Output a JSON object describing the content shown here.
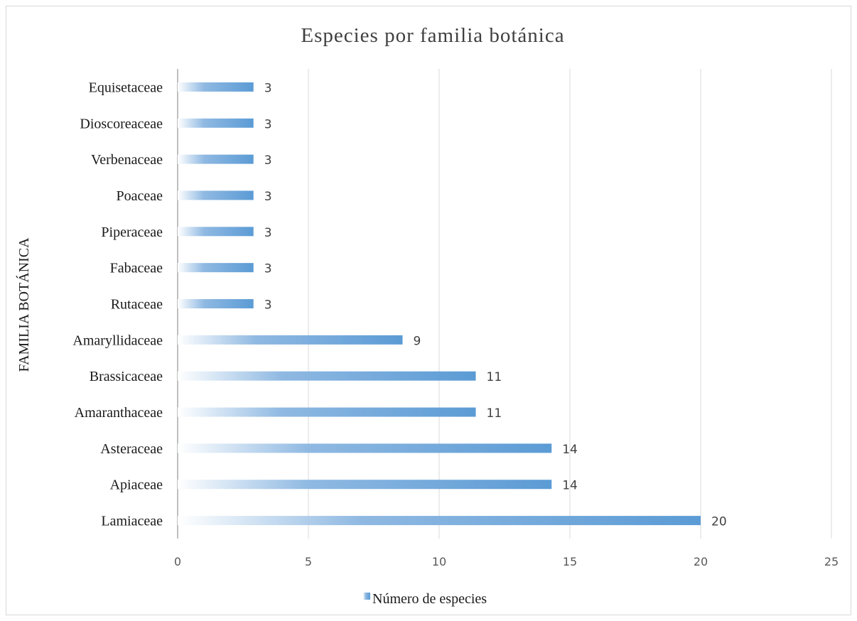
{
  "chart_data": {
    "type": "bar",
    "orientation": "horizontal",
    "title": "Especies por familia botánica",
    "ylabel": "FAMILIA BOTÁNICA",
    "xlabel": "",
    "categories": [
      "Equisetaceae",
      "Dioscoreaceae",
      "Verbenaceae",
      "Poaceae",
      "Piperaceae",
      "Fabaceae",
      "Rutaceae",
      "Amaryllidaceae",
      "Brassicaceae",
      "Amaranthaceae",
      "Asteraceae",
      "Apiaceae",
      "Lamiaceae"
    ],
    "series": [
      {
        "name": "Número de especies",
        "values": [
          2.9,
          2.9,
          2.9,
          2.9,
          2.9,
          2.9,
          2.9,
          8.6,
          11.4,
          11.4,
          14.3,
          14.3,
          20
        ],
        "data_labels": [
          "3",
          "3",
          "3",
          "3",
          "3",
          "3",
          "3",
          "9",
          "11",
          "11",
          "14",
          "14",
          "20"
        ],
        "color": "#5b9bd5"
      }
    ],
    "xlim": [
      0,
      25
    ],
    "x_ticks": [
      "0",
      "5",
      "10",
      "15",
      "20",
      "25"
    ],
    "grid": true,
    "legend_position": "bottom",
    "gridline_color": "#d9d9d9"
  }
}
